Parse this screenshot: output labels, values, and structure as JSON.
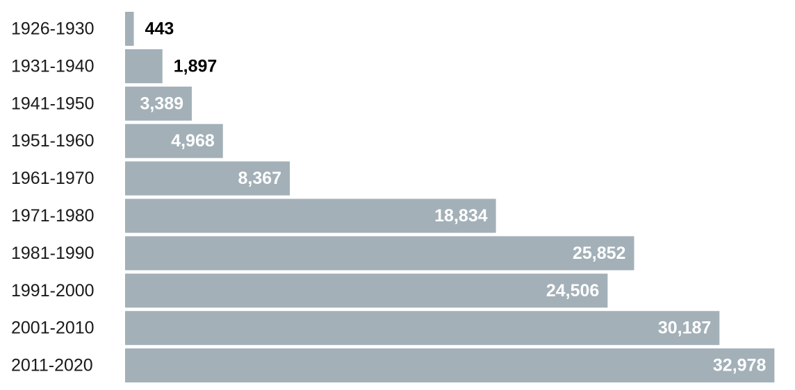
{
  "chart_data": {
    "type": "bar",
    "orientation": "horizontal",
    "categories": [
      "1926-1930",
      "1931-1940",
      "1941-1950",
      "1951-1960",
      "1961-1970",
      "1971-1980",
      "1981-1990",
      "1991-2000",
      "2001-2010",
      "2011-2020"
    ],
    "values": [
      443,
      1897,
      3389,
      4968,
      8367,
      18834,
      25852,
      24506,
      30187,
      32978
    ],
    "value_labels": [
      "443",
      "1,897",
      "3,389",
      "4,968",
      "8,367",
      "18,834",
      "25,852",
      "24,506",
      "30,187",
      "32,978"
    ],
    "title": "",
    "xlabel": "",
    "ylabel": "",
    "xlim": [
      0,
      33000
    ],
    "grid": false,
    "legend": "none",
    "colors": {
      "bar": "#a3b0b8",
      "label_inside": "#ffffff",
      "label_outside": "#000000",
      "category_text": "#1a1a1a"
    }
  }
}
